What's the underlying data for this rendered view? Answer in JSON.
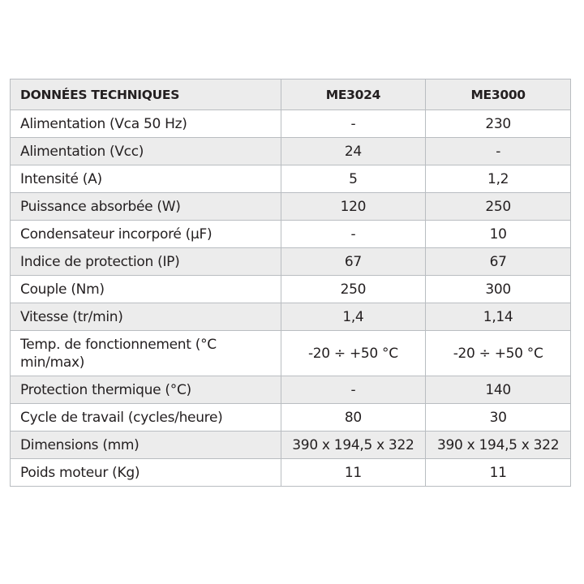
{
  "table": {
    "headers": [
      "DONNÉES TECHNIQUES",
      "ME3024",
      "ME3000"
    ],
    "rows": [
      [
        "Alimentation (Vca 50 Hz)",
        "-",
        "230"
      ],
      [
        "Alimentation (Vcc)",
        "24",
        "-"
      ],
      [
        "Intensité (A)",
        "5",
        "1,2"
      ],
      [
        "Puissance absorbée (W)",
        "120",
        "250"
      ],
      [
        "Condensateur incorporé (µF)",
        "-",
        "10"
      ],
      [
        "Indice de protection (IP)",
        "67",
        "67"
      ],
      [
        "Couple (Nm)",
        "250",
        "300"
      ],
      [
        "Vitesse (tr/min)",
        "1,4",
        "1,14"
      ],
      [
        "Temp. de fonctionnement (°C min/max)",
        "-20 ÷ +50 °C",
        "-20 ÷ +50 °C"
      ],
      [
        "Protection thermique (°C)",
        "-",
        "140"
      ],
      [
        "Cycle de travail (cycles/heure)",
        "80",
        "30"
      ],
      [
        "Dimensions (mm)",
        "390 x 194,5 x 322",
        "390 x 194,5 x 322"
      ],
      [
        "Poids moteur (Kg)",
        "11",
        "11"
      ]
    ]
  },
  "colors": {
    "stripe": "#ececec",
    "border": "#b9bdc1"
  }
}
